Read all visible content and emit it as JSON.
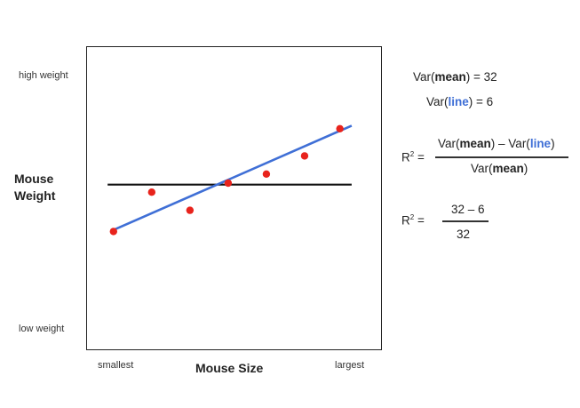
{
  "chart_data": {
    "type": "scatter",
    "ylabel_lines": [
      "Mouse",
      "Weight"
    ],
    "xlabel": "Mouse Size",
    "y_tick_high": "high weight",
    "y_tick_low": "low weight",
    "x_tick_low": "smallest",
    "x_tick_high": "largest",
    "xlim": [
      0,
      10
    ],
    "ylim": [
      0,
      10
    ],
    "points": [
      {
        "x": 0.9,
        "y": 3.9
      },
      {
        "x": 2.2,
        "y": 5.2
      },
      {
        "x": 3.5,
        "y": 4.6
      },
      {
        "x": 4.8,
        "y": 5.5
      },
      {
        "x": 6.1,
        "y": 5.8
      },
      {
        "x": 7.4,
        "y": 6.4
      },
      {
        "x": 8.6,
        "y": 7.3
      }
    ],
    "mean_line": {
      "x0": 0.7,
      "x1": 9.0,
      "y": 5.45
    },
    "fit_line": {
      "x0": 0.9,
      "y0": 3.95,
      "x1": 9.0,
      "y1": 7.4
    },
    "colors": {
      "points": "#e8231c",
      "mean_line": "#111111",
      "fit_line": "#3f6fd6"
    }
  },
  "equations": {
    "var_mean_label": "Var(",
    "var_mean_word": "mean",
    "var_mean_value": ") = 32",
    "var_line_label": "Var(",
    "var_line_word": "line",
    "var_line_value": ") = 6",
    "r2_symbol": "R",
    "r2_exp": "2",
    "r2_eq": " =",
    "frac1_num_a": "Var(",
    "frac1_num_mean": "mean",
    "frac1_num_b": ") – Var(",
    "frac1_num_line": "line",
    "frac1_num_c": ")",
    "frac1_den_a": "Var(",
    "frac1_den_mean": "mean",
    "frac1_den_b": ")",
    "frac2_num": "32 – 6",
    "frac2_den": "32"
  }
}
